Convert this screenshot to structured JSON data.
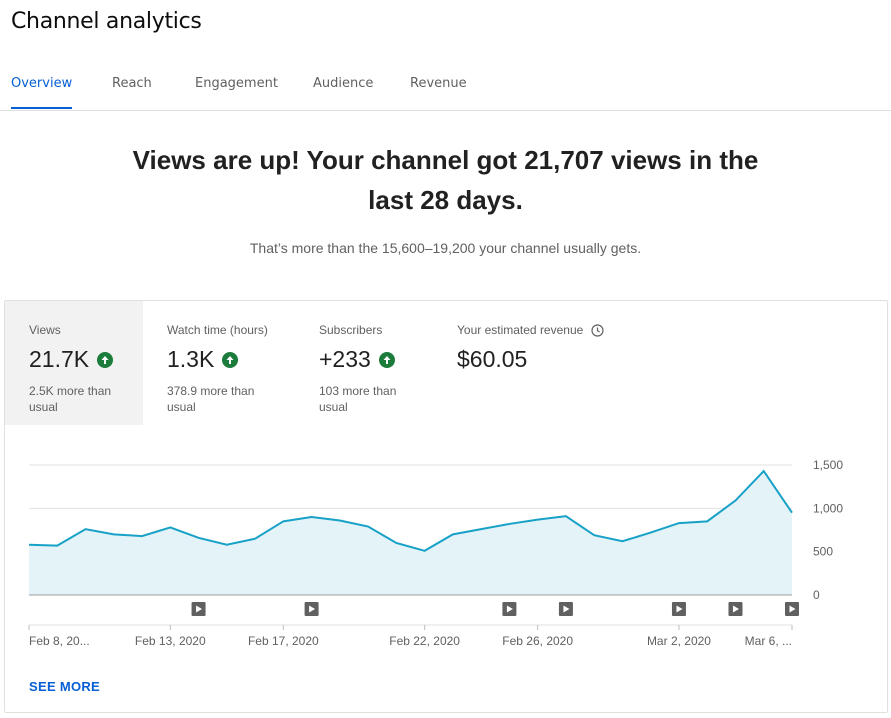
{
  "page": {
    "title": "Channel analytics"
  },
  "tabs": [
    {
      "label": "Overview",
      "active": true
    },
    {
      "label": "Reach",
      "active": false
    },
    {
      "label": "Engagement",
      "active": false
    },
    {
      "label": "Audience",
      "active": false
    },
    {
      "label": "Revenue",
      "active": false
    }
  ],
  "summary": {
    "headline_line1": "Views are up! Your channel got 21,707 views in the",
    "headline_line2": "last 28 days.",
    "subline": "That’s more than the 15,600–19,200 your channel usually gets."
  },
  "metrics": [
    {
      "label": "Views",
      "value": "21.7K",
      "trend": "up",
      "note_line1": "2.5K more than",
      "note_line2": "usual",
      "selected": true
    },
    {
      "label": "Watch time (hours)",
      "value": "1.3K",
      "trend": "up",
      "note_line1": "378.9 more than",
      "note_line2": "usual",
      "selected": false
    },
    {
      "label": "Subscribers",
      "value": "+233",
      "trend": "up",
      "note_line1": "103 more than",
      "note_line2": "usual",
      "selected": false
    },
    {
      "label": "Your estimated revenue",
      "value": "$60.05",
      "trend": "none",
      "note_line1": "",
      "note_line2": "",
      "selected": false,
      "icon": "clock-icon"
    }
  ],
  "chart_data": {
    "type": "area",
    "series": [
      {
        "values": [
          580,
          570,
          760,
          700,
          680,
          780,
          660,
          580,
          650,
          850,
          900,
          860,
          790,
          600,
          510,
          700,
          760,
          820,
          870,
          910,
          690,
          620,
          720,
          830,
          850,
          1090,
          1430,
          950
        ]
      }
    ],
    "x_tick_labels": [
      {
        "label": "Feb 8, 20...",
        "index": 0
      },
      {
        "label": "Feb 13, 2020",
        "index": 5
      },
      {
        "label": "Feb 17, 2020",
        "index": 9
      },
      {
        "label": "Feb 22, 2020",
        "index": 14
      },
      {
        "label": "Feb 26, 2020",
        "index": 18
      },
      {
        "label": "Mar 2, 2020",
        "index": 23
      },
      {
        "label": "Mar 6, ...",
        "index": 27
      }
    ],
    "y_ticks": [
      0,
      500,
      1000,
      1500
    ],
    "y_tick_labels": [
      "0",
      "500",
      "1,000",
      "1,500"
    ],
    "ylim": [
      0,
      1500
    ],
    "video_markers": [
      6,
      10,
      17,
      19,
      23,
      25,
      27
    ],
    "grid": true,
    "colors": {
      "line": "#17a1c7",
      "fill": "#e4f3f8",
      "grid": "#e0e0e0",
      "axis": "#9e9e9e",
      "marker": "#606060"
    }
  },
  "see_more": "SEE MORE"
}
